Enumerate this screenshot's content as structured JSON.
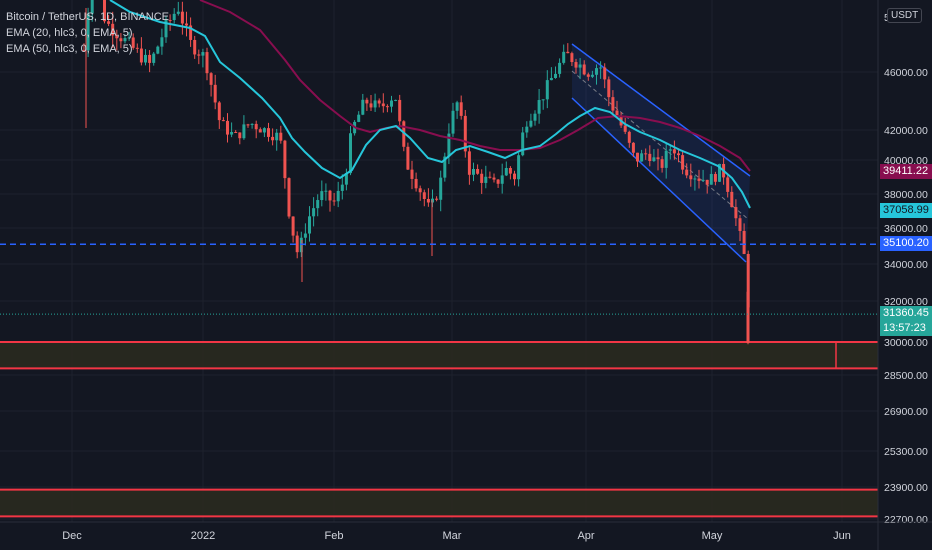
{
  "legend": {
    "title": "Bitcoin / TetherUS, 1D, BINANCE",
    "ema20": "EMA (20, hlc3, 0, EMA, 5)",
    "ema50": "EMA (50, hlc3, 0, EMA, 5)"
  },
  "currency": "USDT",
  "price_tags": {
    "ema50": "39411.22",
    "ema20": "37058.99",
    "hline": "35100.20",
    "last": "31360.45",
    "countdown": "13:57:23"
  },
  "colors": {
    "bg": "#131722",
    "up": "#26a69a",
    "down": "#ef5350",
    "ema20": "#26c6da",
    "ema50": "#880e4f",
    "hline": "#2962ff",
    "zone_border": "#f23645",
    "zone_fill": "#2a2a1f"
  },
  "chart_data": {
    "type": "candlestick",
    "symbol": "Bitcoin / TetherUS",
    "interval": "1D",
    "exchange": "BINANCE",
    "x_ticks": [
      "Dec",
      "2022",
      "Feb",
      "Mar",
      "Apr",
      "May",
      "Jun"
    ],
    "y_ticks": [
      46000,
      42000,
      40000,
      38000,
      36000,
      34000,
      32000,
      30000,
      28500,
      26900,
      25300,
      23900,
      22700
    ],
    "y_tick_labels": [
      "46000.00",
      "42000.00",
      "40000.00",
      "38000.00",
      "36000.00",
      "34000.00",
      "32000.00",
      "30000.00",
      "28500.00",
      "26900.00",
      "25300.00",
      "23900.00",
      "22700.00"
    ],
    "ylim": [
      22500,
      53000
    ],
    "scale": "log",
    "last_price": 31360.45,
    "horizontal_line": 35100.2,
    "zones": [
      {
        "top": 30000,
        "bottom": 28800
      },
      {
        "top": 23800,
        "bottom": 22800
      }
    ],
    "ema20_last": 37058.99,
    "ema50_last": 39411.22
  }
}
